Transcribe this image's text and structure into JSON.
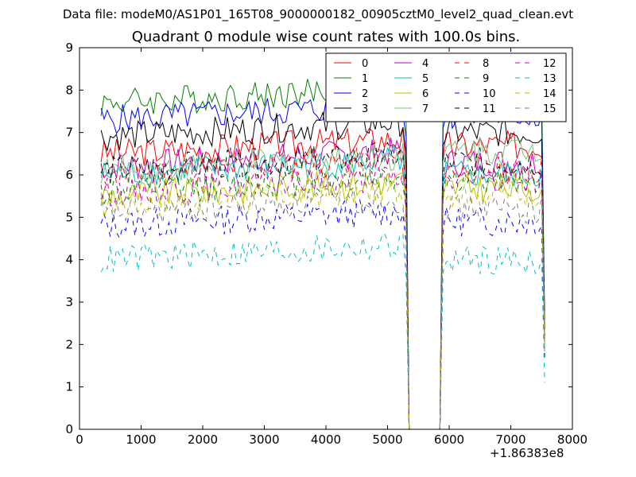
{
  "figure": {
    "suptitle": "Data file: modeM0/AS1P01_165T08_9000000182_00905cztM0_level2_quad_clean.evt",
    "title": "Quadrant 0 module wise count rates with 100.0s bins.",
    "x_offset_text": "+1.86383e8"
  },
  "chart_data": {
    "type": "line",
    "title": "Quadrant 0 module wise count rates with 100.0s bins.",
    "xlabel": "",
    "ylabel": "",
    "xlim": [
      0,
      8000
    ],
    "ylim": [
      0,
      9
    ],
    "x_offset": 186383000,
    "xticks": [
      0,
      1000,
      2000,
      3000,
      4000,
      5000,
      6000,
      7000,
      8000
    ],
    "yticks": [
      0,
      1,
      2,
      3,
      4,
      5,
      6,
      7,
      8,
      9
    ],
    "grid": false,
    "legend": {
      "position": "top-right",
      "columns": 4
    },
    "segments": [
      {
        "x_start": 350,
        "x_end": 5250
      },
      {
        "x_start": 5950,
        "x_end": 7550
      }
    ],
    "gap": {
      "x_start": 5350,
      "x_end": 5850,
      "value": 0
    },
    "series": [
      {
        "name": "0",
        "color": "#ff0000",
        "dash": "solid",
        "level1": 6.5,
        "level2": 6.7,
        "end_value": 2.5
      },
      {
        "name": "1",
        "color": "#008000",
        "dash": "solid",
        "level1": 7.7,
        "level2": 7.8,
        "end_value": 2.6
      },
      {
        "name": "2",
        "color": "#0000ff",
        "dash": "solid",
        "level1": 7.3,
        "level2": 7.4,
        "end_value": 2.5
      },
      {
        "name": "3",
        "color": "#000000",
        "dash": "solid",
        "level1": 6.9,
        "level2": 7.0,
        "end_value": 2.4
      },
      {
        "name": "4",
        "color": "#bf00bf",
        "dash": "solid",
        "level1": 6.2,
        "level2": 6.3,
        "end_value": 2.2
      },
      {
        "name": "5",
        "color": "#00bfbf",
        "dash": "solid",
        "level1": 6.0,
        "level2": 6.0,
        "end_value": 2.0
      },
      {
        "name": "6",
        "color": "#bfbf00",
        "dash": "solid",
        "level1": 5.5,
        "level2": 5.7,
        "end_value": 1.9
      },
      {
        "name": "7",
        "color": "#7fbf7f",
        "dash": "solid",
        "level1": 6.1,
        "level2": 6.6,
        "end_value": 2.3
      },
      {
        "name": "8",
        "color": "#ff0000",
        "dash": "dashed",
        "level1": 6.0,
        "level2": 6.1,
        "end_value": 2.1
      },
      {
        "name": "9",
        "color": "#008000",
        "dash": "dashed",
        "level1": 5.6,
        "level2": 5.9,
        "end_value": 2.0
      },
      {
        "name": "10",
        "color": "#0000ff",
        "dash": "dashed",
        "level1": 4.8,
        "level2": 4.9,
        "end_value": 1.7
      },
      {
        "name": "11",
        "color": "#000000",
        "dash": "dashed",
        "level1": 6.1,
        "level2": 6.3,
        "end_value": 2.2
      },
      {
        "name": "12",
        "color": "#bf00bf",
        "dash": "dashed",
        "level1": 5.6,
        "level2": 5.9,
        "end_value": 2.0
      },
      {
        "name": "13",
        "color": "#00bfbf",
        "dash": "dashed",
        "level1": 4.0,
        "level2": 4.0,
        "end_value": 1.1
      },
      {
        "name": "14",
        "color": "#bfbf00",
        "dash": "dashed",
        "level1": 5.3,
        "level2": 5.6,
        "end_value": 1.9
      },
      {
        "name": "15",
        "color": "#7f7f7f",
        "dash": "dashed",
        "level1": 5.1,
        "level2": 5.2,
        "end_value": 1.8
      }
    ]
  }
}
